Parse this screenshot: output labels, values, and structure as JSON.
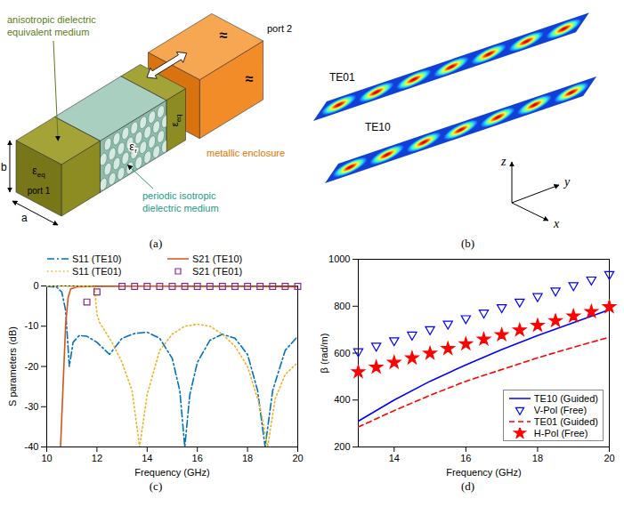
{
  "diagram_a": {
    "caption": "(a)",
    "labels": {
      "equivalent_medium": "anisotropic dielectric equivalent medium",
      "periodic_medium": "periodic isotropic dielectric medium",
      "enclosure": "metallic enclosure",
      "port1": "port 1",
      "port2": "port 2",
      "width": "a",
      "height": "b",
      "break_mark": "≈"
    },
    "permittivities": {
      "eq": {
        "symbol": "ε",
        "subscript": "eq"
      },
      "r": {
        "symbol": "ε",
        "subscript": "r"
      }
    }
  },
  "diagram_b": {
    "caption": "(b)",
    "modes": [
      "TE01",
      "TE10"
    ],
    "axes": [
      "z",
      "y",
      "x"
    ]
  },
  "chart_data": [
    {
      "type": "line",
      "caption": "(c)",
      "xlabel": "Frequency (GHz)",
      "ylabel": "S parameters (dB)",
      "xlim": [
        10,
        20
      ],
      "xticks": [
        10,
        12,
        14,
        16,
        18,
        20
      ],
      "ylim": [
        -40,
        0
      ],
      "yticks": [
        -40,
        -30,
        -20,
        -10,
        0
      ],
      "grid": false,
      "legend": "top",
      "series": [
        {
          "name": "S11 (TE10)",
          "type": "line",
          "color": "#0072BD",
          "line_style": "dashdot",
          "x": [
            10,
            10.4,
            10.6,
            10.75,
            10.9,
            11.05,
            11.3,
            11.6,
            12,
            12.5,
            13,
            13.5,
            14,
            14.5,
            15,
            15.3,
            15.5,
            15.7,
            16,
            16.5,
            17,
            17.5,
            18,
            18.4,
            18.7,
            19,
            19.5,
            20
          ],
          "values": [
            -0.1,
            -0.3,
            -1.5,
            -6,
            -20,
            -14,
            -12.3,
            -12.5,
            -14,
            -17,
            -13,
            -11.8,
            -11.5,
            -13,
            -18,
            -26,
            -40,
            -27,
            -19,
            -13.5,
            -12,
            -13,
            -17,
            -26,
            -40,
            -26,
            -16,
            -12.5
          ]
        },
        {
          "name": "S21 (TE10)",
          "type": "line",
          "color": "#D95319",
          "line_style": "solid",
          "x": [
            10.55,
            10.65,
            10.75,
            10.85,
            10.95,
            11.2,
            12,
            14,
            16,
            18,
            20
          ],
          "values": [
            -40,
            -25,
            -10,
            -3,
            -0.8,
            -0.2,
            -0.1,
            -0.05,
            -0.1,
            -0.1,
            -0.2
          ]
        },
        {
          "name": "S11 (TE01)",
          "type": "line",
          "color": "#EDB120",
          "line_style": "dotted",
          "x": [
            10,
            11.9,
            12,
            12.1,
            12.3,
            12.6,
            13,
            13.4,
            13.7,
            14,
            14.5,
            15,
            15.5,
            16,
            16.5,
            17,
            17.5,
            18,
            18.5,
            18.8,
            19.1,
            19.5,
            20
          ],
          "values": [
            -0.05,
            -0.1,
            -7,
            -9,
            -11,
            -14,
            -19,
            -26,
            -40,
            -27,
            -16,
            -12,
            -10,
            -9.5,
            -10,
            -12,
            -15,
            -20,
            -30,
            -40,
            -28,
            -22,
            -19
          ]
        },
        {
          "name": "S21 (TE01)",
          "type": "scatter",
          "color": "#7E2F8E",
          "marker": "square",
          "x": [
            11.6,
            12,
            13,
            13.5,
            14,
            14.5,
            15,
            15.5,
            16,
            16.5,
            17,
            17.5,
            18,
            18.5,
            19,
            19.5,
            20
          ],
          "values": [
            -4,
            -1.5,
            -0.1,
            -0.1,
            -0.1,
            -0.1,
            -0.1,
            -0.1,
            -0.1,
            -0.1,
            -0.1,
            -0.1,
            -0.1,
            -0.1,
            -0.1,
            -0.1,
            -0.1
          ]
        }
      ]
    },
    {
      "type": "line",
      "caption": "(d)",
      "xlabel": "Frequency (GHz)",
      "ylabel": "β (rad/m)",
      "xlim": [
        13,
        20
      ],
      "xticks": [
        14,
        16,
        18,
        20
      ],
      "ylim": [
        200,
        1000
      ],
      "yticks": [
        200,
        400,
        600,
        800,
        1000
      ],
      "grid": false,
      "legend": "lower right",
      "series": [
        {
          "name": "TE10 (Guided)",
          "type": "line",
          "color": "#0000FF",
          "line_style": "solid",
          "x": [
            13,
            14,
            15,
            16,
            17,
            18,
            19,
            20
          ],
          "values": [
            310,
            400,
            480,
            550,
            615,
            675,
            730,
            785
          ]
        },
        {
          "name": "V-Pol (Free)",
          "type": "scatter",
          "color": "#0000FF",
          "marker": "triangle-down",
          "x": [
            13,
            13.5,
            14,
            14.5,
            15,
            15.5,
            16,
            16.5,
            17,
            17.5,
            18,
            18.5,
            19,
            19.5,
            20
          ],
          "values": [
            607,
            631,
            654,
            678,
            701,
            725,
            748,
            772,
            795,
            819,
            842,
            866,
            889,
            913,
            936
          ]
        },
        {
          "name": "TE01 (Guided)",
          "type": "line",
          "color": "#FF0000",
          "line_style": "dashed",
          "x": [
            13,
            14,
            15,
            16,
            17,
            18,
            19,
            20
          ],
          "values": [
            285,
            355,
            420,
            480,
            530,
            580,
            625,
            668
          ]
        },
        {
          "name": "H-Pol (Free)",
          "type": "scatter",
          "color": "#FF0000",
          "marker": "star",
          "x": [
            13,
            13.5,
            14,
            14.5,
            15,
            15.5,
            16,
            16.5,
            17,
            17.5,
            18,
            18.5,
            19,
            19.5,
            20
          ],
          "values": [
            520,
            540,
            560,
            579,
            599,
            619,
            639,
            659,
            678,
            698,
            718,
            738,
            758,
            777,
            797
          ]
        }
      ]
    }
  ]
}
